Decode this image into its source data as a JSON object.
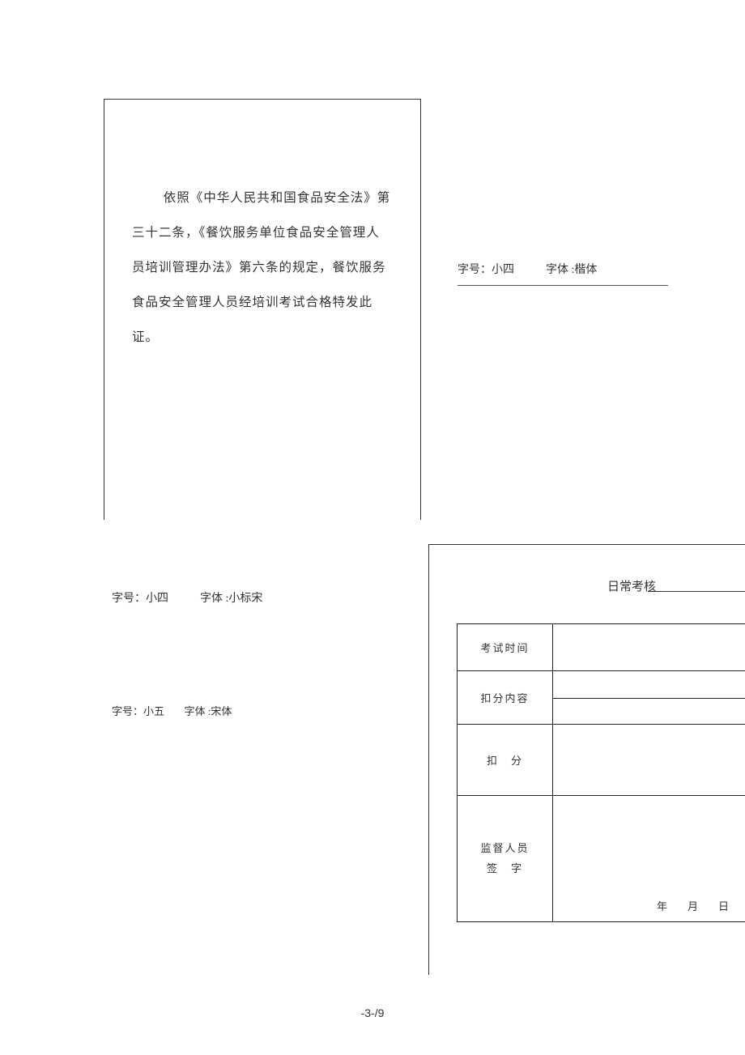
{
  "box_left": {
    "text": "依照《中华人民共和国食品安全法》第三十二条，《餐饮服务单位食品安全管理人员培训管理办法》第六条的规定，餐饮服务食品安全管理人员经培训考试合格特发此证。"
  },
  "right_note": {
    "size_label": "字号：小四",
    "font_label": "字体 :楷体"
  },
  "note1": {
    "size_label": "字号：小四",
    "font_label": "字体 :小标宋"
  },
  "note2": {
    "size_label": "字号：小五",
    "font_label": "字体 :宋体"
  },
  "right_box": {
    "title": "日常考核",
    "rows": {
      "r1": "考试时间",
      "r2": "扣分内容",
      "r3": "扣　分",
      "r4_line1": "监督人员",
      "r4_line2": "签　字",
      "date": "年　月　日"
    }
  },
  "footer": "-3-/9"
}
